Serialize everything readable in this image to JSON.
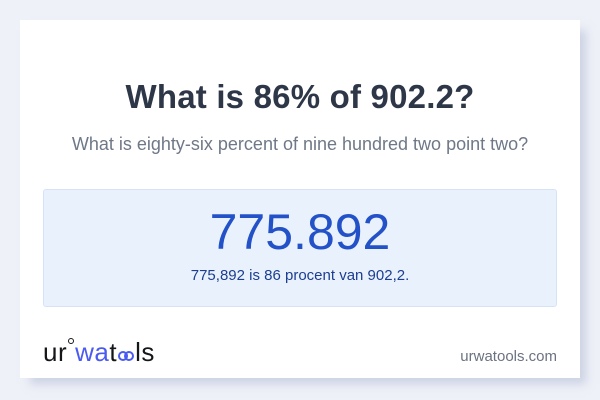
{
  "header": {
    "title": "What is 86% of 902.2?",
    "subtitle": "What is eighty-six percent of nine hundred two point two?"
  },
  "result": {
    "value": "775.892",
    "sentence": "775,892 is 86 procent van 902,2."
  },
  "footer": {
    "logo": {
      "part_ur": "ur",
      "part_wa": "wa",
      "part_t": "t",
      "part_oo": "oo",
      "part_ls": "ls"
    },
    "domain": "urwatools.com"
  },
  "colors": {
    "page_bg": "#eff1f8",
    "card_bg": "#ffffff",
    "title": "#2d3748",
    "subtitle": "#6e7887",
    "result_box_bg": "#e9f2fc",
    "result_box_border": "#d5e3f5",
    "result_value": "#2351c8",
    "result_sentence": "#1c3d92",
    "logo_black": "#15161a",
    "logo_blue": "#4b5bf0",
    "domain_text": "#6b7280"
  }
}
